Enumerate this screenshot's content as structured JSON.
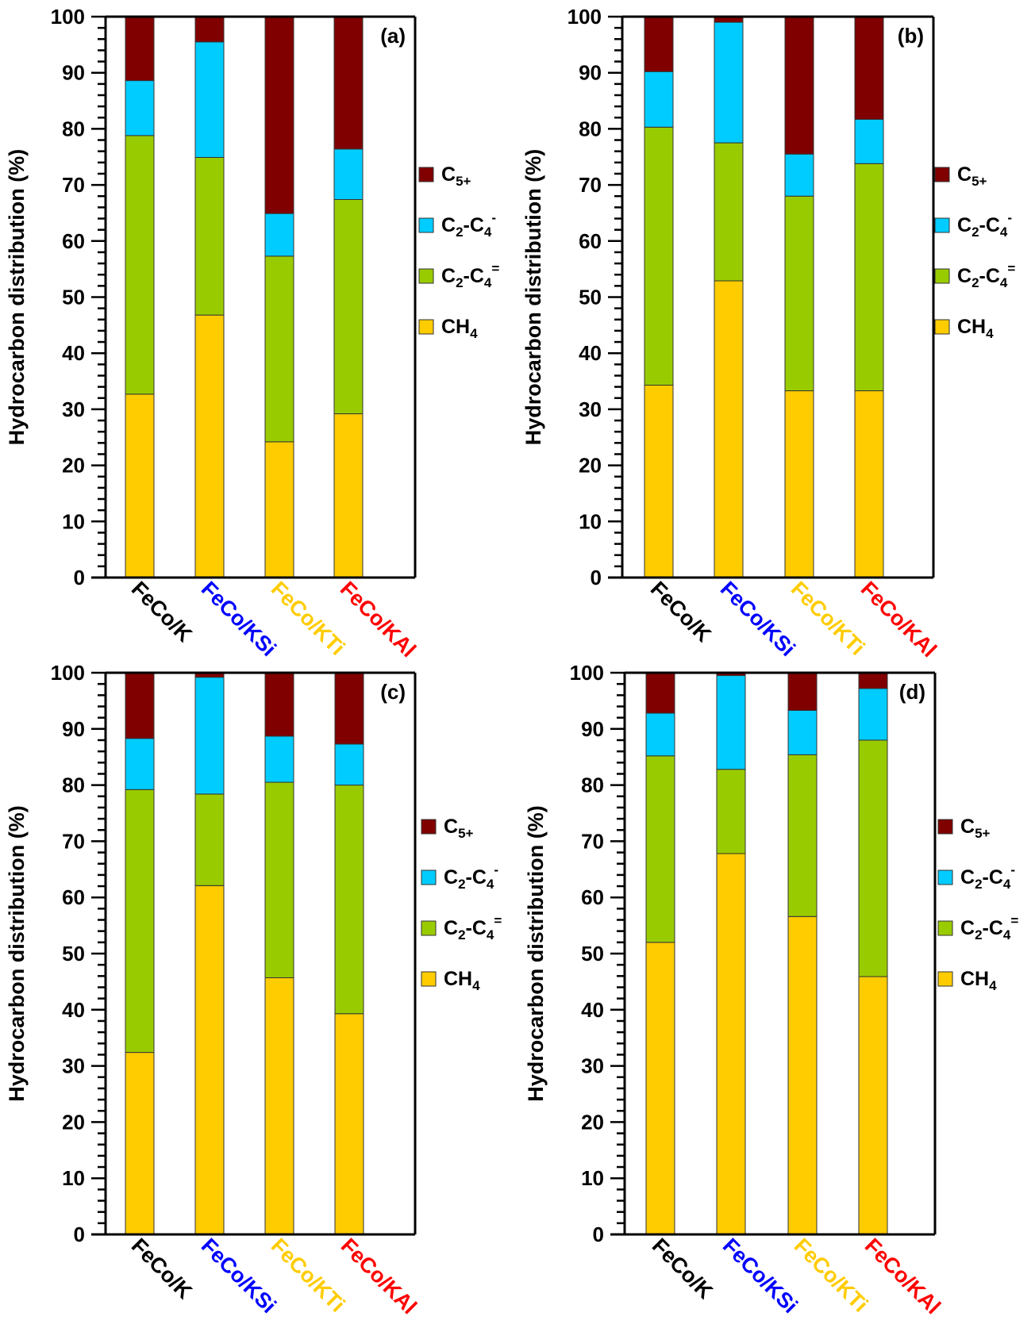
{
  "chart_data": [
    {
      "type": "bar",
      "stacked": true,
      "panel_label": "(a)",
      "ylabel": "Hydrocarbon distribution (%)",
      "xlabel": "",
      "ylim": [
        0,
        100
      ],
      "yticks": [
        0,
        10,
        20,
        30,
        40,
        50,
        60,
        70,
        80,
        90,
        100
      ],
      "categories": [
        "FeCo/K",
        "FeCo/KSi",
        "FeCo/KTi",
        "FeCo/KAl"
      ],
      "category_colors": [
        "#000000",
        "#0000ff",
        "#ffcc00",
        "#ff0000"
      ],
      "series": [
        {
          "name": "CH4",
          "color": "#ffcc00",
          "values": [
            32.7,
            46.8,
            24.2,
            29.2
          ]
        },
        {
          "name": "C2-C4=",
          "color": "#99cc00",
          "values": [
            46.1,
            28.1,
            33.1,
            38.2
          ]
        },
        {
          "name": "C2-C4-",
          "color": "#00ccff",
          "values": [
            9.8,
            20.6,
            7.6,
            9.0
          ]
        },
        {
          "name": "C5+",
          "color": "#800000",
          "values": [
            11.4,
            4.5,
            35.1,
            23.6
          ]
        }
      ],
      "legend_position": "right"
    },
    {
      "type": "bar",
      "stacked": true,
      "panel_label": "(b)",
      "ylabel": "Hydrocarbon distribution (%)",
      "xlabel": "",
      "ylim": [
        0,
        100
      ],
      "yticks": [
        0,
        10,
        20,
        30,
        40,
        50,
        60,
        70,
        80,
        90,
        100
      ],
      "categories": [
        "FeCo/K",
        "FeCo/KSi",
        "FeCo/KTi",
        "FeCo/KAl"
      ],
      "category_colors": [
        "#000000",
        "#0000ff",
        "#ffcc00",
        "#ff0000"
      ],
      "series": [
        {
          "name": "CH4",
          "color": "#ffcc00",
          "values": [
            34.3,
            52.9,
            33.3,
            33.3
          ]
        },
        {
          "name": "C2-C4=",
          "color": "#99cc00",
          "values": [
            46.0,
            24.6,
            34.7,
            40.5
          ]
        },
        {
          "name": "C2-C4-",
          "color": "#00ccff",
          "values": [
            9.9,
            21.5,
            7.5,
            7.9
          ]
        },
        {
          "name": "C5+",
          "color": "#800000",
          "values": [
            9.8,
            1.0,
            24.5,
            18.3
          ]
        }
      ],
      "legend_position": "right"
    },
    {
      "type": "bar",
      "stacked": true,
      "panel_label": "(c)",
      "ylabel": "Hydrocarbon distribution (%)",
      "xlabel": "",
      "ylim": [
        0,
        100
      ],
      "yticks": [
        0,
        10,
        20,
        30,
        40,
        50,
        60,
        70,
        80,
        90,
        100
      ],
      "categories": [
        "FeCo/K",
        "FeCo/KSi",
        "FeCo/KTi",
        "FeCo/KAl"
      ],
      "category_colors": [
        "#000000",
        "#0000ff",
        "#ffcc00",
        "#ff0000"
      ],
      "series": [
        {
          "name": "CH4",
          "color": "#ffcc00",
          "values": [
            32.4,
            62.1,
            45.7,
            39.3
          ]
        },
        {
          "name": "C2-C4=",
          "color": "#99cc00",
          "values": [
            46.8,
            16.3,
            34.8,
            40.7
          ]
        },
        {
          "name": "C2-C4-",
          "color": "#00ccff",
          "values": [
            9.1,
            20.8,
            8.2,
            7.3
          ]
        },
        {
          "name": "C5+",
          "color": "#800000",
          "values": [
            11.7,
            0.8,
            11.3,
            12.7
          ]
        }
      ],
      "legend_position": "right"
    },
    {
      "type": "bar",
      "stacked": true,
      "panel_label": "(d)",
      "ylabel": "Hydrocarbon distribution (%)",
      "xlabel": "",
      "ylim": [
        0,
        100
      ],
      "yticks": [
        0,
        10,
        20,
        30,
        40,
        50,
        60,
        70,
        80,
        90,
        100
      ],
      "categories": [
        "FeCo/K",
        "FeCo/KSi",
        "FeCo/KTi",
        "FeCo/KAl"
      ],
      "category_colors": [
        "#000000",
        "#0000ff",
        "#ffcc00",
        "#ff0000"
      ],
      "series": [
        {
          "name": "CH4",
          "color": "#ffcc00",
          "values": [
            52.0,
            67.8,
            56.6,
            45.9
          ]
        },
        {
          "name": "C2-C4=",
          "color": "#99cc00",
          "values": [
            33.2,
            15.0,
            28.8,
            42.1
          ]
        },
        {
          "name": "C2-C4-",
          "color": "#00ccff",
          "values": [
            7.6,
            16.7,
            7.9,
            9.2
          ]
        },
        {
          "name": "C5+",
          "color": "#800000",
          "values": [
            7.2,
            0.5,
            6.7,
            2.8
          ]
        }
      ],
      "legend_position": "right"
    }
  ],
  "legend": [
    {
      "name": "C5+",
      "base": "C",
      "sub": "5+",
      "sup": "",
      "color": "#800000"
    },
    {
      "name": "C2-C4-",
      "base": "C",
      "sub": "2",
      "mid": "-C",
      "sub2": "4",
      "sup": "-",
      "color": "#00ccff"
    },
    {
      "name": "C2-C4=",
      "base": "C",
      "sub": "2",
      "mid": "-C",
      "sub2": "4",
      "sup": "=",
      "color": "#99cc00"
    },
    {
      "name": "CH4",
      "base": "CH",
      "sub": "4",
      "sup": "",
      "color": "#ffcc00"
    }
  ]
}
